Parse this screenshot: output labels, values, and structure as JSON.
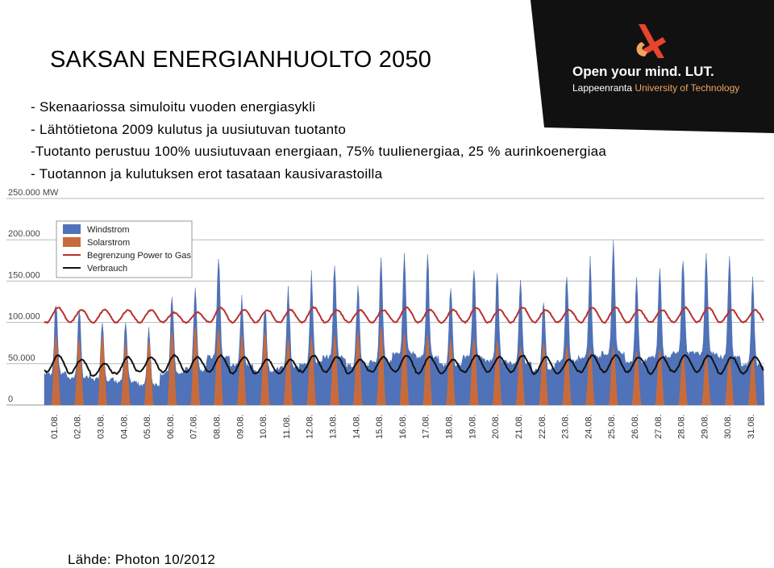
{
  "slide": {
    "title": "SAKSAN ENERGIANHUOLTO 2050",
    "bullets": [
      "- Skenaariossa simuloitu vuoden energiasykli",
      "- Lähtötietona 2009 kulutus ja uusiutuvan tuotanto",
      "-Tuotanto perustuu 100% uusiutuvaan energiaan, 75% tuulienergiaa, 25 % aurinkoenergiaa",
      "- Tuotannon ja kulutuksen erot tasataan kausivarastoilla"
    ],
    "source": "Lähde: Photon 10/2012"
  },
  "logo": {
    "tagline": "Open your mind. LUT.",
    "university_prefix": "Lappeenranta ",
    "university_suffix": "University of Technology",
    "colors": {
      "background": "#111111",
      "accent": "#e8452c",
      "text": "#ffffff",
      "university": "#f1a65f"
    }
  },
  "chart_data": {
    "type": "area",
    "ylim": [
      0,
      250000
    ],
    "y_ticks": [
      {
        "value": 0,
        "label": "0"
      },
      {
        "value": 50000,
        "label": "50.000"
      },
      {
        "value": 100000,
        "label": "100.000"
      },
      {
        "value": 150000,
        "label": "150.000"
      },
      {
        "value": 200000,
        "label": "200.000"
      },
      {
        "value": 250000,
        "label": "250.000 MW"
      }
    ],
    "categories": [
      "01.08.",
      "02.08.",
      "03.08.",
      "04.08.",
      "05.08.",
      "06.08.",
      "07.08.",
      "08.08.",
      "09.08.",
      "10.08.",
      "11.08.",
      "12.08.",
      "13.08.",
      "14.08.",
      "15.08.",
      "16.08.",
      "17.08.",
      "18.08.",
      "19.08.",
      "20.08.",
      "21.08.",
      "22.08.",
      "23.08.",
      "24.08.",
      "25.08.",
      "26.08.",
      "27.08.",
      "28.08.",
      "29.08.",
      "30.08.",
      "31.08."
    ],
    "series": [
      {
        "name": "Windstrom",
        "type": "area",
        "color": "#4f72b8",
        "daily_peak": [
          130000,
          120000,
          105000,
          100000,
          95000,
          140000,
          150000,
          195000,
          135000,
          125000,
          145000,
          160000,
          175000,
          150000,
          185000,
          190000,
          185000,
          155000,
          175000,
          165000,
          160000,
          130000,
          165000,
          180000,
          210000,
          160000,
          175000,
          190000,
          195000,
          185000,
          160000
        ],
        "daily_base": [
          35000,
          30000,
          28000,
          25000,
          22000,
          35000,
          40000,
          55000,
          45000,
          38000,
          42000,
          48000,
          55000,
          45000,
          50000,
          60000,
          55000,
          45000,
          55000,
          50000,
          48000,
          40000,
          50000,
          55000,
          60000,
          50000,
          55000,
          60000,
          60000,
          55000,
          45000
        ]
      },
      {
        "name": "Solarstrom",
        "type": "area",
        "color": "#c86b3c",
        "daily_peak": [
          85000,
          80000,
          85000,
          75000,
          78000,
          90000,
          95000,
          92000,
          85000,
          88000,
          80000,
          82000,
          85000,
          90000,
          95000,
          88000,
          85000,
          80000,
          82000,
          78000,
          70000,
          75000,
          72000,
          68000,
          70000,
          65000,
          68000,
          62000,
          60000,
          58000,
          60000
        ]
      },
      {
        "name": "Begrenzung Power to Gas",
        "type": "line",
        "color": "#b8312d",
        "daily_high": [
          118000,
          115000,
          115000,
          115000,
          115000,
          112000,
          112000,
          118000,
          115000,
          115000,
          115000,
          118000,
          115000,
          115000,
          115000,
          118000,
          115000,
          115000,
          118000,
          115000,
          118000,
          115000,
          115000,
          118000,
          118000,
          115000,
          115000,
          118000,
          118000,
          115000,
          115000
        ],
        "daily_low": [
          100000,
          100000,
          100000,
          100000,
          100000,
          100000,
          100000,
          100000,
          100000,
          100000,
          100000,
          100000,
          100000,
          100000,
          100000,
          100000,
          100000,
          100000,
          100000,
          100000,
          100000,
          100000,
          100000,
          100000,
          100000,
          100000,
          100000,
          100000,
          100000,
          100000,
          100000
        ]
      },
      {
        "name": "Verbrauch",
        "type": "line",
        "color": "#111111",
        "daily_high": [
          60000,
          55000,
          50000,
          58000,
          58000,
          60000,
          58000,
          60000,
          58000,
          55000,
          55000,
          60000,
          58000,
          55000,
          58000,
          60000,
          58000,
          55000,
          60000,
          58000,
          60000,
          58000,
          55000,
          60000,
          60000,
          58000,
          58000,
          60000,
          60000,
          58000,
          58000
        ],
        "daily_low": [
          40000,
          38000,
          35000,
          38000,
          40000,
          40000,
          40000,
          40000,
          38000,
          38000,
          38000,
          40000,
          40000,
          38000,
          40000,
          40000,
          38000,
          38000,
          40000,
          40000,
          40000,
          38000,
          38000,
          40000,
          40000,
          40000,
          38000,
          40000,
          40000,
          38000,
          38000
        ]
      }
    ],
    "legend": {
      "position": "top-left"
    },
    "grid": {
      "horizontal": true,
      "vertical": false
    }
  }
}
